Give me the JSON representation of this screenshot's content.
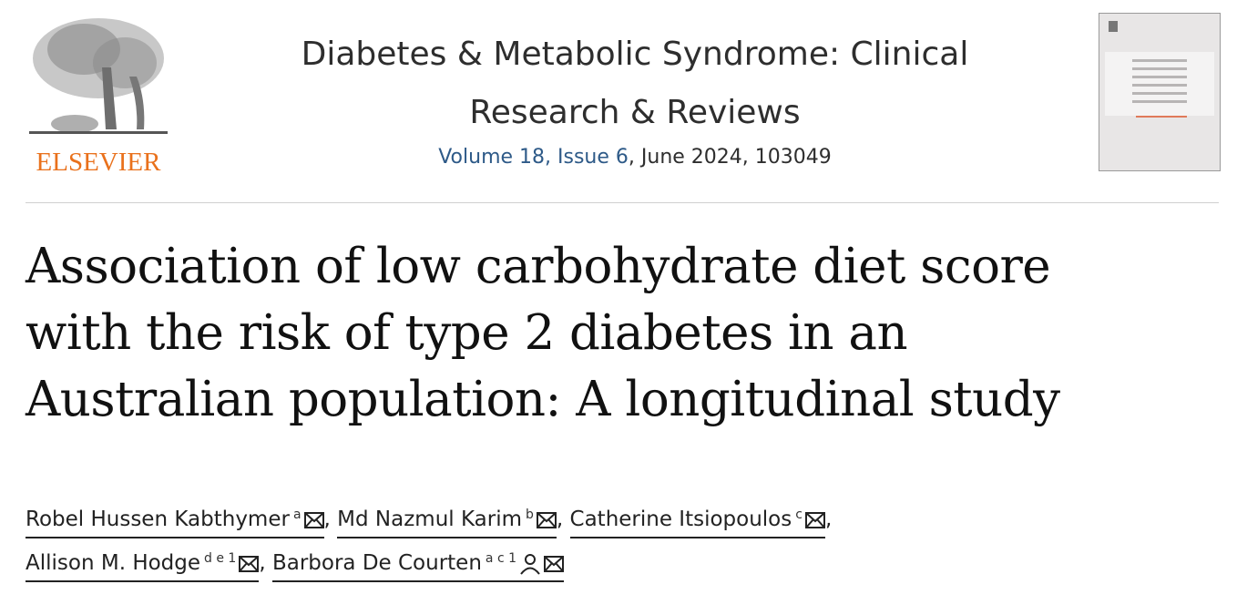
{
  "publisher": {
    "logo_text": "ELSEVIER"
  },
  "journal": {
    "title_line1": "Diabetes & Metabolic Syndrome: Clinical",
    "title_line2": "Research & Reviews",
    "volume_issue": "Volume 18, Issue 6",
    "date_article": ", June 2024, 103049"
  },
  "article": {
    "title_lines": [
      "Association of low carbohydrate diet score",
      "with the risk of type 2 diabetes in an",
      "Australian population: A longitudinal study"
    ],
    "authors": [
      {
        "name": "Robel Hussen Kabthymer",
        "affil": "a",
        "icons": [
          "email-icon"
        ]
      },
      {
        "name": "Md Nazmul Karim",
        "affil": "b",
        "icons": [
          "email-icon"
        ]
      },
      {
        "name": "Catherine Itsiopoulos",
        "affil": "c",
        "icons": [
          "email-icon"
        ]
      },
      {
        "name": "Allison M. Hodge",
        "affil": "d e 1",
        "icons": [
          "email-icon"
        ]
      },
      {
        "name": "Barbora De Courten",
        "affil": "a c 1",
        "icons": [
          "person-icon",
          "email-icon"
        ]
      }
    ],
    "separator": ","
  },
  "colors": {
    "elsevier_orange": "#e9711c",
    "link_blue": "#2e5a88"
  }
}
